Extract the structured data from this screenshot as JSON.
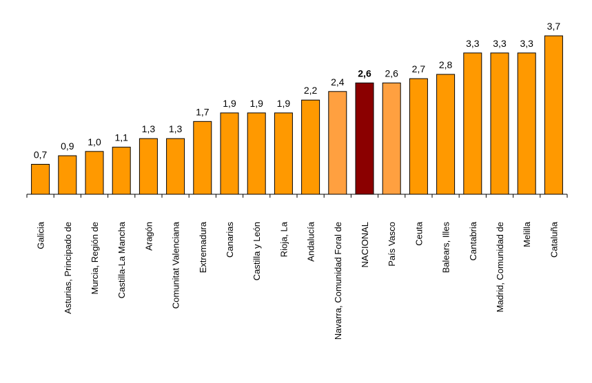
{
  "chart_data": {
    "type": "bar",
    "title": "",
    "xlabel": "",
    "ylabel": "",
    "ylim": [
      0,
      3.7
    ],
    "grid": false,
    "categories": [
      "Galicia",
      "Asturias, Principado de",
      "Murcia, Región de",
      "Castilla-La Mancha",
      "Aragón",
      "Comunitat Valenciana",
      "Extremadura",
      "Canarias",
      "Castilla y León",
      "Rioja, La",
      "Andalucía",
      "Navarra, Comunidad Foral de",
      "NACIONAL",
      "País Vasco",
      "Ceuta",
      "Balears, Illes",
      "Cantabria",
      "Madrid, Comunidad de",
      "Melilla",
      "Cataluña"
    ],
    "values": [
      0.7,
      0.9,
      1.0,
      1.1,
      1.3,
      1.3,
      1.7,
      1.9,
      1.9,
      1.9,
      2.2,
      2.4,
      2.6,
      2.6,
      2.7,
      2.8,
      3.3,
      3.3,
      3.3,
      3.7
    ],
    "value_labels": [
      "0,7",
      "0,9",
      "1,0",
      "1,1",
      "1,3",
      "1,3",
      "1,7",
      "1,9",
      "1,9",
      "1,9",
      "2,2",
      "2,4",
      "2,6",
      "2,6",
      "2,7",
      "2,8",
      "3,3",
      "3,3",
      "3,3",
      "3,7"
    ],
    "highlight_category": "NACIONAL",
    "colors": {
      "default": "#FF9900",
      "below_national_light": "#FFA040",
      "highlight": "#8B0000",
      "outline": "#000000"
    },
    "bar_colors": [
      "#FF9900",
      "#FF9900",
      "#FF9900",
      "#FF9900",
      "#FF9900",
      "#FF9900",
      "#FF9900",
      "#FF9900",
      "#FF9900",
      "#FF9900",
      "#FF9900",
      "#FFA040",
      "#8B0000",
      "#FFA040",
      "#FF9900",
      "#FF9900",
      "#FF9900",
      "#FF9900",
      "#FF9900",
      "#FF9900"
    ]
  }
}
